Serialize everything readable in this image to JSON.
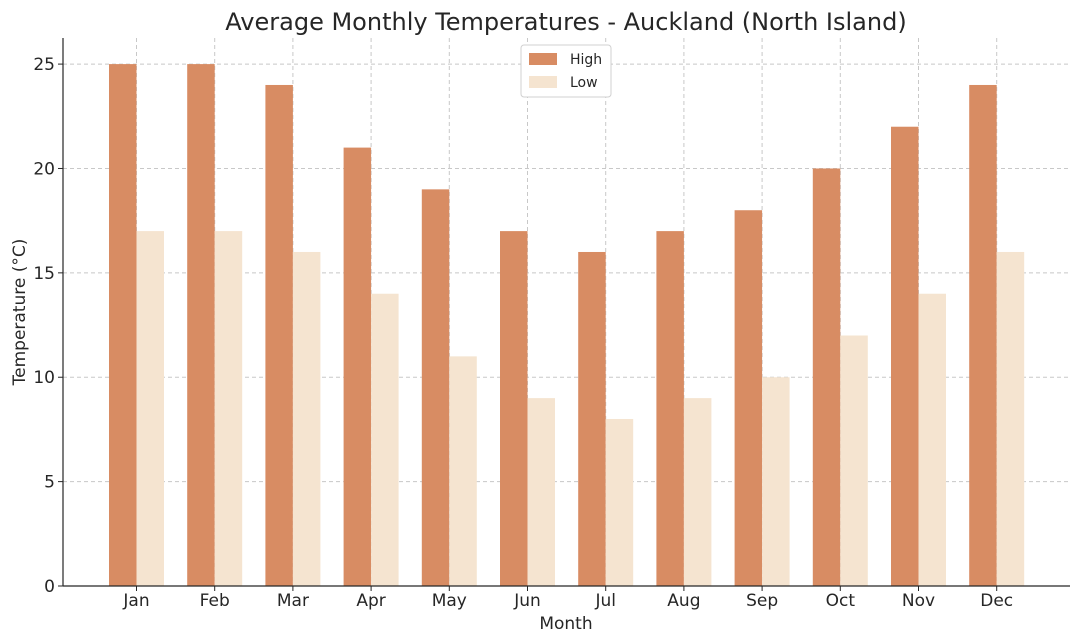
{
  "chart_data": {
    "type": "bar",
    "title": "Average Monthly Temperatures - Auckland (North Island)",
    "xlabel": "Month",
    "ylabel": "Temperature (°C)",
    "categories": [
      "Jan",
      "Feb",
      "Mar",
      "Apr",
      "May",
      "Jun",
      "Jul",
      "Aug",
      "Sep",
      "Oct",
      "Nov",
      "Dec"
    ],
    "series": [
      {
        "name": "High",
        "color": "#d88c63",
        "values": [
          25,
          25,
          24,
          21,
          19,
          17,
          16,
          17,
          18,
          20,
          22,
          24
        ]
      },
      {
        "name": "Low",
        "color": "#f5e4d0",
        "values": [
          17,
          17,
          16,
          14,
          11,
          9,
          8,
          9,
          10,
          12,
          14,
          16
        ]
      }
    ],
    "ylim": [
      0,
      26.25
    ],
    "yticks": [
      0,
      5,
      10,
      15,
      20,
      25
    ],
    "grid": true,
    "legend_position": "top-center"
  }
}
